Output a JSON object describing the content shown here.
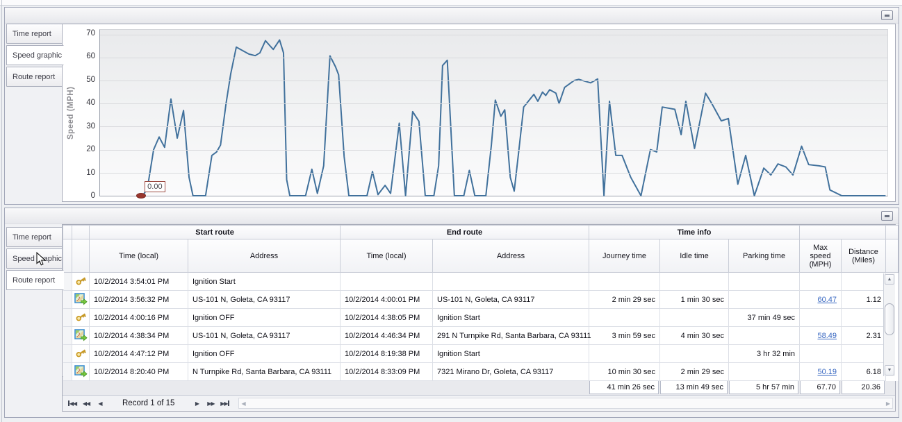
{
  "icons": {
    "collapse": "minus-in-box",
    "scroll_up": "▲",
    "scroll_down": "▼",
    "prev": "◀",
    "next": "▶"
  },
  "top_panel": {
    "tabs": [
      {
        "label": "Time report",
        "active": false
      },
      {
        "label": "Speed graphic",
        "active": true
      },
      {
        "label": "Route report",
        "active": false
      }
    ]
  },
  "chart_data": {
    "type": "line",
    "title": "",
    "xlabel": "",
    "ylabel": "Speed (MPH)",
    "ylim": [
      0,
      72
    ],
    "yticks": [
      0,
      10,
      20,
      30,
      40,
      50,
      60,
      70
    ],
    "xticks": [],
    "grid": "horizontal",
    "legend": "none",
    "line_color": "#41719c",
    "marker": {
      "x_pct": 5.4,
      "value": 0,
      "label": "0.00",
      "color": "#99372f"
    },
    "series": [
      {
        "name": "Speed",
        "points": [
          [
            5.4,
            0
          ],
          [
            6.0,
            3
          ],
          [
            6.8,
            20
          ],
          [
            7.5,
            25.5
          ],
          [
            8.2,
            21
          ],
          [
            9.0,
            42
          ],
          [
            9.8,
            25
          ],
          [
            10.6,
            37
          ],
          [
            11.3,
            8
          ],
          [
            11.8,
            0
          ],
          [
            13.4,
            0
          ],
          [
            14.2,
            17.5
          ],
          [
            14.8,
            19
          ],
          [
            15.3,
            22
          ],
          [
            16.0,
            40
          ],
          [
            16.6,
            53
          ],
          [
            17.3,
            64.5
          ],
          [
            18.1,
            63
          ],
          [
            18.9,
            61.5
          ],
          [
            19.7,
            60.8
          ],
          [
            20.3,
            62
          ],
          [
            21.0,
            67.3
          ],
          [
            21.6,
            65
          ],
          [
            22.0,
            63.5
          ],
          [
            22.8,
            67.6
          ],
          [
            23.3,
            62
          ],
          [
            23.7,
            7
          ],
          [
            24.1,
            0
          ],
          [
            26.1,
            0
          ],
          [
            26.9,
            11.5
          ],
          [
            27.6,
            1
          ],
          [
            28.4,
            13
          ],
          [
            29.2,
            60.7
          ],
          [
            29.9,
            56
          ],
          [
            30.3,
            52.5
          ],
          [
            31.0,
            17
          ],
          [
            31.6,
            0
          ],
          [
            33.9,
            0
          ],
          [
            34.6,
            10.5
          ],
          [
            35.3,
            0.5
          ],
          [
            36.2,
            4.5
          ],
          [
            36.9,
            1
          ],
          [
            38.0,
            31.5
          ],
          [
            38.8,
            0
          ],
          [
            39.7,
            36.5
          ],
          [
            40.5,
            32.3
          ],
          [
            41.3,
            0
          ],
          [
            42.4,
            0
          ],
          [
            43.0,
            13
          ],
          [
            43.5,
            56.5
          ],
          [
            44.1,
            58.8
          ],
          [
            45.0,
            0
          ],
          [
            46.2,
            0
          ],
          [
            46.9,
            11
          ],
          [
            47.6,
            0
          ],
          [
            49.0,
            0
          ],
          [
            49.7,
            22
          ],
          [
            50.2,
            41.5
          ],
          [
            50.9,
            34.5
          ],
          [
            51.4,
            37.3
          ],
          [
            52.1,
            8
          ],
          [
            52.6,
            2
          ],
          [
            53.2,
            20
          ],
          [
            53.8,
            38.5
          ],
          [
            55.1,
            44
          ],
          [
            55.6,
            41
          ],
          [
            56.2,
            45
          ],
          [
            56.6,
            43.5
          ],
          [
            57.1,
            46
          ],
          [
            57.9,
            44.5
          ],
          [
            58.3,
            40
          ],
          [
            59.0,
            47
          ],
          [
            60.2,
            50
          ],
          [
            60.8,
            50.5
          ],
          [
            61.8,
            49.5
          ],
          [
            62.3,
            49
          ],
          [
            63.2,
            50.7
          ],
          [
            64.0,
            0
          ],
          [
            64.7,
            41
          ],
          [
            65.5,
            17.5
          ],
          [
            66.3,
            17.5
          ],
          [
            67.4,
            8
          ],
          [
            68.7,
            0
          ],
          [
            69.9,
            20
          ],
          [
            70.7,
            19
          ],
          [
            71.4,
            38.5
          ],
          [
            73.0,
            37.5
          ],
          [
            73.8,
            26.5
          ],
          [
            74.4,
            41
          ],
          [
            75.5,
            20.5
          ],
          [
            76.9,
            44.5
          ],
          [
            77.7,
            40
          ],
          [
            78.9,
            32.5
          ],
          [
            79.8,
            33.5
          ],
          [
            81.0,
            5
          ],
          [
            82.0,
            17.5
          ],
          [
            83.1,
            0
          ],
          [
            84.3,
            12
          ],
          [
            85.2,
            9
          ],
          [
            86.1,
            13.8
          ],
          [
            87.1,
            12.5
          ],
          [
            88.0,
            9
          ],
          [
            89.1,
            21.5
          ],
          [
            90.0,
            13.5
          ],
          [
            91.3,
            13
          ],
          [
            92.1,
            12.5
          ],
          [
            92.7,
            2.5
          ],
          [
            94.2,
            0
          ],
          [
            99.7,
            0
          ]
        ]
      }
    ]
  },
  "bottom_panel": {
    "tabs": [
      {
        "label": "Time report",
        "active": false
      },
      {
        "label": "Speed graphic",
        "active": false
      },
      {
        "label": "Route report",
        "active": true
      }
    ],
    "table": {
      "groups": {
        "start": "Start route",
        "end": "End route",
        "time": "Time info"
      },
      "columns": [
        "Time (local)",
        "Address",
        "Time (local)",
        "Address",
        "Journey time",
        "Idle time",
        "Parking time",
        "Max speed (MPH)",
        "Distance (Miles)"
      ],
      "rows": [
        {
          "icon": "key",
          "start_time": "10/2/2014 3:54:01 PM",
          "start_address": "Ignition Start",
          "end_time": "",
          "end_address": "",
          "journey": "",
          "idle": "",
          "parking": "",
          "max_speed": "",
          "max_speed_link": false,
          "distance": ""
        },
        {
          "icon": "route",
          "start_time": "10/2/2014 3:56:32 PM",
          "start_address": "US-101 N, Goleta, CA 93117",
          "end_time": "10/2/2014 4:00:01 PM",
          "end_address": "US-101 N, Goleta, CA 93117",
          "journey": "2 min 29 sec",
          "idle": "1 min 30 sec",
          "parking": "",
          "max_speed": "60.47",
          "max_speed_link": true,
          "distance": "1.12"
        },
        {
          "icon": "key",
          "start_time": "10/2/2014 4:00:16 PM",
          "start_address": "Ignition OFF",
          "end_time": "10/2/2014 4:38:05 PM",
          "end_address": "Ignition Start",
          "journey": "",
          "idle": "",
          "parking": "37 min 49 sec",
          "max_speed": "",
          "max_speed_link": false,
          "distance": ""
        },
        {
          "icon": "route",
          "start_time": "10/2/2014 4:38:34 PM",
          "start_address": "US-101 N, Goleta, CA 93117",
          "end_time": "10/2/2014 4:46:34 PM",
          "end_address": "291 N Turnpike Rd, Santa Barbara, CA 93111",
          "journey": "3 min 59 sec",
          "idle": "4 min 30 sec",
          "parking": "",
          "max_speed": "58.49",
          "max_speed_link": true,
          "distance": "2.31"
        },
        {
          "icon": "key",
          "start_time": "10/2/2014 4:47:12 PM",
          "start_address": "Ignition OFF",
          "end_time": "10/2/2014 8:19:38 PM",
          "end_address": "Ignition Start",
          "journey": "",
          "idle": "",
          "parking": "3 hr 32 min",
          "max_speed": "",
          "max_speed_link": false,
          "distance": ""
        },
        {
          "icon": "route",
          "start_time": "10/2/2014 8:20:40 PM",
          "start_address": "N Turnpike Rd, Santa Barbara, CA 93111",
          "end_time": "10/2/2014 8:33:09 PM",
          "end_address": "7321 Mirano Dr, Goleta, CA 93117",
          "journey": "10 min 30 sec",
          "idle": "2 min 29 sec",
          "parking": "",
          "max_speed": "50.19",
          "max_speed_link": true,
          "distance": "6.18"
        }
      ],
      "summary": {
        "journey": "41 min 26 sec",
        "idle": "13 min 49 sec",
        "parking": "5 hr 57 min",
        "max_speed": "67.70",
        "distance": "20.36"
      }
    },
    "record_navigator": {
      "label": "Record 1 of 15"
    }
  }
}
